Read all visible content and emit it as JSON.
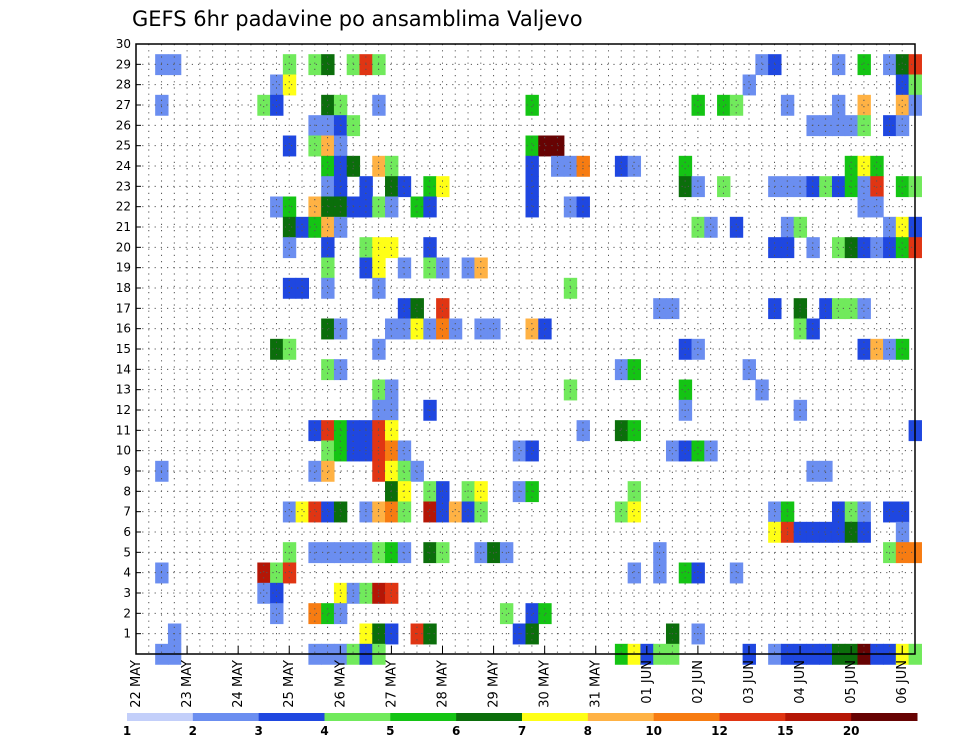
{
  "chart_data": {
    "type": "heatmap",
    "title": "GEFS 6hr padavine po ansamblima Valjevo",
    "xlabel": "",
    "ylabel": "",
    "x_ticks": [
      "22 MAY",
      "23 MAY",
      "24 MAY",
      "25 MAY",
      "26 MAY",
      "27 MAY",
      "28 MAY",
      "29 MAY",
      "30 MAY",
      "31 MAY",
      "01 JUN",
      "02 JUN",
      "03 JUN",
      "04 JUN",
      "05 JUN",
      "06 JUN"
    ],
    "y_ticks": [
      "1",
      "2",
      "3",
      "4",
      "5",
      "6",
      "7",
      "8",
      "9",
      "10",
      "11",
      "12",
      "13",
      "14",
      "15",
      "16",
      "17",
      "18",
      "19",
      "20",
      "21",
      "22",
      "23",
      "24",
      "25",
      "26",
      "27",
      "28",
      "29",
      "30"
    ],
    "xlim": [
      0,
      61
    ],
    "ylim": [
      0,
      30
    ],
    "time_step": "6hr",
    "grid": true,
    "colorbar_ticks": [
      "1",
      "2",
      "3",
      "4",
      "5",
      "6",
      "7",
      "8",
      "10",
      "12",
      "15",
      "20"
    ],
    "colorbar_colors": [
      "#c3cffa",
      "#6b8ef0",
      "#1f47e0",
      "#71ea5c",
      "#14c414",
      "#0b6e0b",
      "#ffff16",
      "#ffb244",
      "#f77c12",
      "#e03513",
      "#b51606",
      "#670303"
    ],
    "cells": [
      [
        2,
        29,
        1
      ],
      [
        3,
        29,
        1
      ],
      [
        12,
        29,
        3
      ],
      [
        14,
        29,
        3
      ],
      [
        15,
        29,
        5
      ],
      [
        17,
        29,
        3
      ],
      [
        18,
        29,
        9
      ],
      [
        19,
        29,
        3
      ],
      [
        49,
        29,
        1
      ],
      [
        50,
        29,
        2
      ],
      [
        55,
        29,
        1
      ],
      [
        57,
        29,
        4
      ],
      [
        59,
        29,
        1
      ],
      [
        60,
        29,
        5
      ],
      [
        61,
        29,
        9
      ],
      [
        11,
        28,
        1
      ],
      [
        12,
        28,
        6
      ],
      [
        48,
        28,
        1
      ],
      [
        60,
        28,
        2
      ],
      [
        61,
        28,
        3
      ],
      [
        2,
        27,
        1
      ],
      [
        10,
        27,
        3
      ],
      [
        11,
        27,
        2
      ],
      [
        15,
        27,
        5
      ],
      [
        16,
        27,
        3
      ],
      [
        19,
        27,
        1
      ],
      [
        31,
        27,
        4
      ],
      [
        44,
        27,
        4
      ],
      [
        46,
        27,
        4
      ],
      [
        47,
        27,
        3
      ],
      [
        51,
        27,
        1
      ],
      [
        55,
        27,
        1
      ],
      [
        57,
        27,
        7
      ],
      [
        60,
        27,
        7
      ],
      [
        61,
        27,
        1
      ],
      [
        14,
        26,
        1
      ],
      [
        15,
        26,
        1
      ],
      [
        16,
        26,
        2
      ],
      [
        17,
        26,
        3
      ],
      [
        53,
        26,
        1
      ],
      [
        54,
        26,
        1
      ],
      [
        55,
        26,
        1
      ],
      [
        56,
        26,
        1
      ],
      [
        57,
        26,
        3
      ],
      [
        59,
        26,
        2
      ],
      [
        60,
        26,
        1
      ],
      [
        12,
        25,
        2
      ],
      [
        14,
        25,
        3
      ],
      [
        15,
        25,
        7
      ],
      [
        16,
        25,
        1
      ],
      [
        31,
        25,
        4
      ],
      [
        32,
        25,
        11
      ],
      [
        33,
        25,
        11
      ],
      [
        15,
        24,
        4
      ],
      [
        16,
        24,
        2
      ],
      [
        17,
        24,
        5
      ],
      [
        19,
        24,
        7
      ],
      [
        20,
        24,
        3
      ],
      [
        31,
        24,
        2
      ],
      [
        33,
        24,
        1
      ],
      [
        34,
        24,
        1
      ],
      [
        35,
        24,
        8
      ],
      [
        38,
        24,
        2
      ],
      [
        39,
        24,
        1
      ],
      [
        43,
        24,
        4
      ],
      [
        56,
        24,
        4
      ],
      [
        57,
        24,
        6
      ],
      [
        58,
        24,
        4
      ],
      [
        15,
        23,
        1
      ],
      [
        16,
        23,
        2
      ],
      [
        18,
        23,
        2
      ],
      [
        20,
        23,
        5
      ],
      [
        21,
        23,
        2
      ],
      [
        23,
        23,
        4
      ],
      [
        24,
        23,
        6
      ],
      [
        31,
        23,
        2
      ],
      [
        43,
        23,
        5
      ],
      [
        44,
        23,
        1
      ],
      [
        46,
        23,
        3
      ],
      [
        50,
        23,
        1
      ],
      [
        51,
        23,
        1
      ],
      [
        52,
        23,
        1
      ],
      [
        53,
        23,
        2
      ],
      [
        54,
        23,
        3
      ],
      [
        55,
        23,
        2
      ],
      [
        56,
        23,
        4
      ],
      [
        57,
        23,
        1
      ],
      [
        58,
        23,
        9
      ],
      [
        60,
        23,
        4
      ],
      [
        61,
        23,
        3
      ],
      [
        11,
        22,
        1
      ],
      [
        12,
        22,
        4
      ],
      [
        14,
        22,
        7
      ],
      [
        15,
        22,
        5
      ],
      [
        16,
        22,
        5
      ],
      [
        17,
        22,
        2
      ],
      [
        18,
        22,
        2
      ],
      [
        19,
        22,
        3
      ],
      [
        20,
        22,
        1
      ],
      [
        22,
        22,
        4
      ],
      [
        23,
        22,
        2
      ],
      [
        31,
        22,
        2
      ],
      [
        34,
        22,
        1
      ],
      [
        35,
        22,
        2
      ],
      [
        57,
        22,
        1
      ],
      [
        58,
        22,
        1
      ],
      [
        12,
        21,
        5
      ],
      [
        13,
        21,
        2
      ],
      [
        14,
        21,
        4
      ],
      [
        15,
        21,
        7
      ],
      [
        16,
        21,
        1
      ],
      [
        44,
        21,
        3
      ],
      [
        45,
        21,
        1
      ],
      [
        47,
        21,
        2
      ],
      [
        51,
        21,
        1
      ],
      [
        52,
        21,
        3
      ],
      [
        59,
        21,
        1
      ],
      [
        60,
        21,
        6
      ],
      [
        61,
        21,
        2
      ],
      [
        12,
        20,
        1
      ],
      [
        15,
        20,
        2
      ],
      [
        18,
        20,
        3
      ],
      [
        19,
        20,
        6
      ],
      [
        20,
        20,
        6
      ],
      [
        23,
        20,
        2
      ],
      [
        50,
        20,
        2
      ],
      [
        51,
        20,
        2
      ],
      [
        53,
        20,
        1
      ],
      [
        55,
        20,
        3
      ],
      [
        56,
        20,
        5
      ],
      [
        57,
        20,
        2
      ],
      [
        58,
        20,
        1
      ],
      [
        59,
        20,
        2
      ],
      [
        60,
        20,
        4
      ],
      [
        61,
        20,
        9
      ],
      [
        15,
        19,
        3
      ],
      [
        18,
        19,
        2
      ],
      [
        19,
        19,
        6
      ],
      [
        21,
        19,
        1
      ],
      [
        23,
        19,
        3
      ],
      [
        24,
        19,
        1
      ],
      [
        26,
        19,
        1
      ],
      [
        27,
        19,
        7
      ],
      [
        12,
        18,
        2
      ],
      [
        13,
        18,
        2
      ],
      [
        15,
        18,
        1
      ],
      [
        19,
        18,
        1
      ],
      [
        34,
        18,
        3
      ],
      [
        21,
        17,
        2
      ],
      [
        22,
        17,
        5
      ],
      [
        24,
        17,
        9
      ],
      [
        41,
        17,
        1
      ],
      [
        42,
        17,
        1
      ],
      [
        50,
        17,
        2
      ],
      [
        52,
        17,
        5
      ],
      [
        54,
        17,
        2
      ],
      [
        55,
        17,
        3
      ],
      [
        56,
        17,
        3
      ],
      [
        57,
        17,
        1
      ],
      [
        15,
        16,
        5
      ],
      [
        16,
        16,
        1
      ],
      [
        20,
        16,
        1
      ],
      [
        21,
        16,
        1
      ],
      [
        22,
        16,
        6
      ],
      [
        23,
        16,
        1
      ],
      [
        24,
        16,
        8
      ],
      [
        25,
        16,
        1
      ],
      [
        27,
        16,
        1
      ],
      [
        28,
        16,
        1
      ],
      [
        31,
        16,
        7
      ],
      [
        32,
        16,
        2
      ],
      [
        52,
        16,
        3
      ],
      [
        53,
        16,
        2
      ],
      [
        11,
        15,
        5
      ],
      [
        12,
        15,
        3
      ],
      [
        19,
        15,
        1
      ],
      [
        43,
        15,
        2
      ],
      [
        44,
        15,
        1
      ],
      [
        57,
        15,
        2
      ],
      [
        58,
        15,
        7
      ],
      [
        59,
        15,
        1
      ],
      [
        60,
        15,
        4
      ],
      [
        15,
        14,
        3
      ],
      [
        16,
        14,
        1
      ],
      [
        38,
        14,
        1
      ],
      [
        39,
        14,
        4
      ],
      [
        48,
        14,
        1
      ],
      [
        19,
        13,
        3
      ],
      [
        20,
        13,
        1
      ],
      [
        34,
        13,
        3
      ],
      [
        43,
        13,
        4
      ],
      [
        49,
        13,
        1
      ],
      [
        19,
        12,
        1
      ],
      [
        20,
        12,
        1
      ],
      [
        23,
        12,
        2
      ],
      [
        43,
        12,
        1
      ],
      [
        52,
        12,
        1
      ],
      [
        14,
        11,
        2
      ],
      [
        15,
        11,
        9
      ],
      [
        16,
        11,
        4
      ],
      [
        17,
        11,
        2
      ],
      [
        18,
        11,
        2
      ],
      [
        19,
        11,
        9
      ],
      [
        20,
        11,
        6
      ],
      [
        35,
        11,
        1
      ],
      [
        38,
        11,
        5
      ],
      [
        39,
        11,
        4
      ],
      [
        61,
        11,
        2
      ],
      [
        15,
        10,
        3
      ],
      [
        16,
        10,
        4
      ],
      [
        17,
        10,
        2
      ],
      [
        18,
        10,
        2
      ],
      [
        19,
        10,
        9
      ],
      [
        20,
        10,
        8
      ],
      [
        21,
        10,
        1
      ],
      [
        30,
        10,
        1
      ],
      [
        31,
        10,
        2
      ],
      [
        42,
        10,
        1
      ],
      [
        43,
        10,
        2
      ],
      [
        44,
        10,
        4
      ],
      [
        45,
        10,
        1
      ],
      [
        2,
        9,
        1
      ],
      [
        14,
        9,
        1
      ],
      [
        15,
        9,
        7
      ],
      [
        19,
        9,
        9
      ],
      [
        20,
        9,
        6
      ],
      [
        21,
        9,
        3
      ],
      [
        22,
        9,
        1
      ],
      [
        53,
        9,
        1
      ],
      [
        54,
        9,
        1
      ],
      [
        20,
        8,
        5
      ],
      [
        21,
        8,
        6
      ],
      [
        23,
        8,
        3
      ],
      [
        24,
        8,
        2
      ],
      [
        26,
        8,
        3
      ],
      [
        27,
        8,
        6
      ],
      [
        30,
        8,
        1
      ],
      [
        31,
        8,
        4
      ],
      [
        39,
        8,
        3
      ],
      [
        12,
        7,
        1
      ],
      [
        13,
        7,
        6
      ],
      [
        14,
        7,
        9
      ],
      [
        15,
        7,
        2
      ],
      [
        16,
        7,
        5
      ],
      [
        18,
        7,
        1
      ],
      [
        19,
        7,
        7
      ],
      [
        20,
        7,
        8
      ],
      [
        21,
        7,
        3
      ],
      [
        23,
        7,
        10
      ],
      [
        24,
        7,
        2
      ],
      [
        25,
        7,
        7
      ],
      [
        26,
        7,
        2
      ],
      [
        27,
        7,
        3
      ],
      [
        38,
        7,
        3
      ],
      [
        39,
        7,
        6
      ],
      [
        50,
        7,
        1
      ],
      [
        51,
        7,
        4
      ],
      [
        55,
        7,
        2
      ],
      [
        56,
        7,
        3
      ],
      [
        57,
        7,
        1
      ],
      [
        59,
        7,
        2
      ],
      [
        60,
        7,
        2
      ],
      [
        50,
        6,
        6
      ],
      [
        51,
        6,
        9
      ],
      [
        52,
        6,
        2
      ],
      [
        53,
        6,
        2
      ],
      [
        54,
        6,
        2
      ],
      [
        55,
        6,
        2
      ],
      [
        56,
        6,
        5
      ],
      [
        57,
        6,
        2
      ],
      [
        60,
        6,
        1
      ],
      [
        12,
        5,
        3
      ],
      [
        14,
        5,
        1
      ],
      [
        15,
        5,
        1
      ],
      [
        16,
        5,
        1
      ],
      [
        17,
        5,
        1
      ],
      [
        18,
        5,
        1
      ],
      [
        19,
        5,
        3
      ],
      [
        20,
        5,
        4
      ],
      [
        21,
        5,
        1
      ],
      [
        23,
        5,
        5
      ],
      [
        24,
        5,
        3
      ],
      [
        27,
        5,
        1
      ],
      [
        28,
        5,
        5
      ],
      [
        29,
        5,
        1
      ],
      [
        41,
        5,
        1
      ],
      [
        59,
        5,
        3
      ],
      [
        60,
        5,
        8
      ],
      [
        61,
        5,
        8
      ],
      [
        2,
        4,
        1
      ],
      [
        10,
        4,
        10
      ],
      [
        11,
        4,
        3
      ],
      [
        12,
        4,
        9
      ],
      [
        39,
        4,
        1
      ],
      [
        41,
        4,
        1
      ],
      [
        43,
        4,
        4
      ],
      [
        44,
        4,
        2
      ],
      [
        47,
        4,
        1
      ],
      [
        10,
        3,
        1
      ],
      [
        11,
        3,
        2
      ],
      [
        16,
        3,
        6
      ],
      [
        17,
        3,
        1
      ],
      [
        18,
        3,
        3
      ],
      [
        19,
        3,
        10
      ],
      [
        20,
        3,
        9
      ],
      [
        11,
        2,
        1
      ],
      [
        14,
        2,
        8
      ],
      [
        15,
        2,
        4
      ],
      [
        16,
        2,
        1
      ],
      [
        29,
        2,
        3
      ],
      [
        31,
        2,
        2
      ],
      [
        32,
        2,
        4
      ],
      [
        3,
        1,
        1
      ],
      [
        18,
        1,
        6
      ],
      [
        19,
        1,
        5
      ],
      [
        20,
        1,
        2
      ],
      [
        22,
        1,
        9
      ],
      [
        23,
        1,
        5
      ],
      [
        30,
        1,
        2
      ],
      [
        31,
        1,
        5
      ],
      [
        42,
        1,
        5
      ],
      [
        44,
        1,
        1
      ],
      [
        2,
        0,
        1
      ],
      [
        3,
        0,
        1
      ],
      [
        14,
        0,
        1
      ],
      [
        15,
        0,
        1
      ],
      [
        16,
        0,
        1
      ],
      [
        17,
        0,
        3
      ],
      [
        18,
        0,
        2
      ],
      [
        19,
        0,
        3
      ],
      [
        38,
        0,
        4
      ],
      [
        39,
        0,
        6
      ],
      [
        40,
        0,
        2
      ],
      [
        41,
        0,
        3
      ],
      [
        42,
        0,
        3
      ],
      [
        48,
        0,
        2
      ],
      [
        50,
        0,
        1
      ],
      [
        51,
        0,
        2
      ],
      [
        52,
        0,
        2
      ],
      [
        53,
        0,
        2
      ],
      [
        54,
        0,
        2
      ],
      [
        55,
        0,
        5
      ],
      [
        56,
        0,
        5
      ],
      [
        57,
        0,
        11
      ],
      [
        58,
        0,
        2
      ],
      [
        59,
        0,
        2
      ],
      [
        60,
        0,
        6
      ],
      [
        61,
        0,
        3
      ]
    ]
  }
}
